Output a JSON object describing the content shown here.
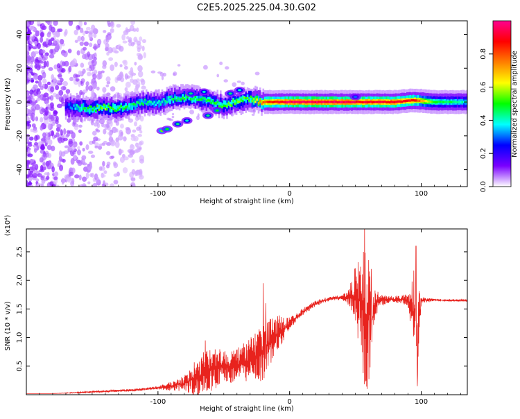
{
  "figure": {
    "title": "C2E5.2025.225.04.30.G02"
  },
  "chart_data": [
    {
      "type": "heatmap",
      "xlabel": "Height of straight line (km)",
      "ylabel": "Frequency (Hz)",
      "xlim": [
        -200,
        135
      ],
      "ylim": [
        -50,
        48
      ],
      "xticks": [
        -100,
        0,
        100
      ],
      "yticks": [
        -40,
        -20,
        0,
        20,
        40
      ],
      "grid": false,
      "colorbar": {
        "label": "Normalized spectral amplitude",
        "range": [
          0,
          1
        ],
        "ticks": [
          "0.0",
          "0.2",
          "0.4",
          "0.6",
          "0.8"
        ],
        "tick_values": [
          0.0,
          0.2,
          0.4,
          0.6,
          0.8
        ],
        "colors": [
          "#ffffff",
          "#7a00ff",
          "#0000ff",
          "#00ffff",
          "#00ff00",
          "#ffff00",
          "#ff7f00",
          "#ff0000",
          "#ff0090"
        ]
      },
      "ridge": [
        {
          "x": -170,
          "y": -3,
          "v": 0.25
        },
        {
          "x": -160,
          "y": -3,
          "v": 0.45
        },
        {
          "x": -150,
          "y": -4,
          "v": 0.5
        },
        {
          "x": -140,
          "y": -3,
          "v": 0.55
        },
        {
          "x": -130,
          "y": -4,
          "v": 0.5
        },
        {
          "x": -120,
          "y": -2,
          "v": 0.45
        },
        {
          "x": -110,
          "y": 0,
          "v": 0.45
        },
        {
          "x": -100,
          "y": -1,
          "v": 0.4
        },
        {
          "x": -90,
          "y": 2,
          "v": 0.45
        },
        {
          "x": -80,
          "y": 3,
          "v": 0.5
        },
        {
          "x": -70,
          "y": 2,
          "v": 0.45
        },
        {
          "x": -60,
          "y": 0,
          "v": 0.5
        },
        {
          "x": -50,
          "y": -2,
          "v": 0.5
        },
        {
          "x": -40,
          "y": 0,
          "v": 0.55
        },
        {
          "x": -30,
          "y": 2,
          "v": 0.5
        },
        {
          "x": -20,
          "y": 0,
          "v": 0.8
        },
        {
          "x": 0,
          "y": 0,
          "v": 0.95
        },
        {
          "x": 20,
          "y": 0,
          "v": 0.95
        },
        {
          "x": 40,
          "y": 0,
          "v": 0.95
        },
        {
          "x": 60,
          "y": 0,
          "v": 0.9
        },
        {
          "x": 80,
          "y": 0,
          "v": 0.9
        },
        {
          "x": 95,
          "y": 1,
          "v": 0.85
        },
        {
          "x": 110,
          "y": 0,
          "v": 0.5
        },
        {
          "x": 135,
          "y": 0,
          "v": 0.4
        }
      ],
      "branches": [
        {
          "x": -97,
          "y": -17,
          "v": 0.55
        },
        {
          "x": -93,
          "y": -16,
          "v": 0.5
        },
        {
          "x": -85,
          "y": -13,
          "v": 0.45
        },
        {
          "x": -78,
          "y": -11,
          "v": 0.4
        },
        {
          "x": -62,
          "y": -8,
          "v": 0.45
        },
        {
          "x": -55,
          "y": -5,
          "v": 0.5
        },
        {
          "x": -45,
          "y": 5,
          "v": 0.45
        },
        {
          "x": -38,
          "y": 7,
          "v": 0.4
        },
        {
          "x": -65,
          "y": 6,
          "v": 0.4
        },
        {
          "x": -75,
          "y": 5,
          "v": 0.45
        },
        {
          "x": 50,
          "y": 3,
          "v": 0.3
        }
      ]
    },
    {
      "type": "line",
      "xlabel": "Height of straight line (km)",
      "ylabel": "SNR (10 * v/v)",
      "y_multiplier": "(x10⁴)",
      "xlim": [
        -200,
        135
      ],
      "ylim": [
        0,
        2.9
      ],
      "xticks": [
        -100,
        0,
        100
      ],
      "yticks": [
        0.5,
        1.0,
        1.5,
        2.0,
        2.5
      ],
      "ytick_labels": [
        "0.5",
        "1.0",
        "1.5",
        "2.0",
        "2.5"
      ],
      "color": "#e8231e",
      "grid": false,
      "series": [
        {
          "x": [
            -200,
            -180,
            -160,
            -140,
            -120,
            -100,
            -90,
            -80,
            -70,
            -60,
            -50,
            -40,
            -30,
            -20,
            -10,
            0,
            10,
            20,
            30,
            40,
            45,
            50,
            55,
            58,
            60,
            62,
            65,
            70,
            80,
            90,
            95,
            97,
            100,
            110,
            120,
            135
          ],
          "y": [
            0.02,
            0.02,
            0.04,
            0.06,
            0.08,
            0.12,
            0.15,
            0.2,
            0.3,
            0.45,
            0.5,
            0.5,
            0.6,
            0.75,
            1.05,
            1.25,
            1.45,
            1.6,
            1.68,
            1.7,
            1.7,
            1.75,
            1.6,
            1.1,
            1.5,
            1.2,
            1.6,
            1.65,
            1.67,
            1.66,
            1.4,
            1.0,
            1.65,
            1.66,
            1.65,
            1.65
          ],
          "spread": [
            0,
            0,
            0.01,
            0.02,
            0.02,
            0.03,
            0.08,
            0.15,
            0.35,
            0.4,
            0.3,
            0.3,
            0.4,
            0.5,
            0.35,
            0.1,
            0.06,
            0.05,
            0.04,
            0.04,
            0.15,
            0.5,
            1.1,
            1.4,
            1.3,
            0.6,
            0.25,
            0.1,
            0.06,
            0.1,
            0.9,
            0.9,
            0.06,
            0.02,
            0.02,
            0.02
          ]
        }
      ],
      "spikes": [
        {
          "x": -64,
          "y": 0.95
        },
        {
          "x": -20,
          "y": 1.95
        },
        {
          "x": -18,
          "y": 1.6
        },
        {
          "x": 57,
          "y": 2.95
        },
        {
          "x": 59,
          "y": 0.1
        },
        {
          "x": 62,
          "y": 2.2
        },
        {
          "x": 96,
          "y": 2.6
        },
        {
          "x": 97,
          "y": 0.15
        }
      ]
    }
  ]
}
